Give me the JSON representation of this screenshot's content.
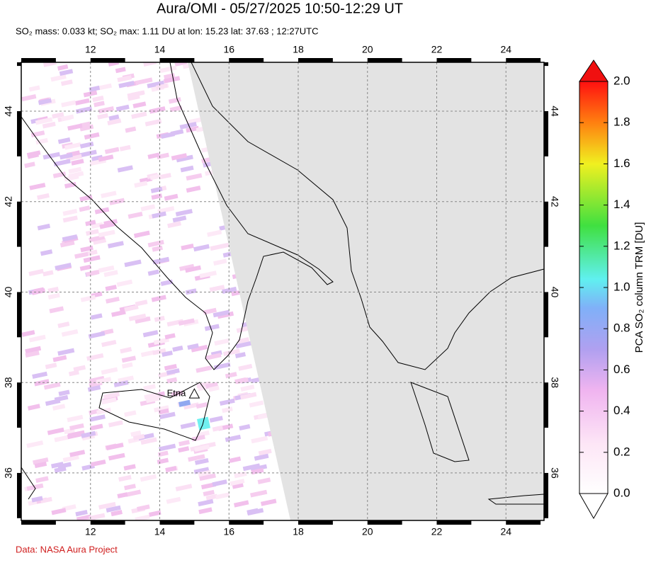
{
  "header": {
    "title": "Aura/OMI - 05/27/2025 10:50-12:29 UT",
    "subtitle": "SO₂ mass: 0.033 kt; SO₂ max: 1.11 DU at lon: 15.23 lat: 37.63 ; 12:27UTC"
  },
  "map": {
    "xlim": [
      10,
      25.1
    ],
    "ylim": [
      34.95,
      45.08
    ],
    "xticks": [
      12,
      14,
      16,
      18,
      20,
      22,
      24
    ],
    "yticks": [
      36,
      38,
      40,
      42,
      44
    ],
    "volcanoes": [
      {
        "name": "Etna",
        "lon": 15.0,
        "lat": 37.75
      }
    ]
  },
  "colorbar": {
    "label": "PCA SO₂ column TRM [DU]",
    "lim": [
      0,
      2
    ],
    "ticks": [
      {
        "value": 0,
        "label": "0.0"
      },
      {
        "value": 0.2,
        "label": "0.2"
      },
      {
        "value": 0.4,
        "label": "0.4"
      },
      {
        "value": 0.6,
        "label": "0.6"
      },
      {
        "value": 0.8,
        "label": "0.8"
      },
      {
        "value": 1,
        "label": "1.0"
      },
      {
        "value": 1.2,
        "label": "1.2"
      },
      {
        "value": 1.4,
        "label": "1.4"
      },
      {
        "value": 1.6,
        "label": "1.6"
      },
      {
        "value": 1.8,
        "label": "1.8"
      },
      {
        "value": 2,
        "label": "2.0"
      }
    ]
  },
  "footer": {
    "credit": "Data: NASA Aura Project"
  }
}
